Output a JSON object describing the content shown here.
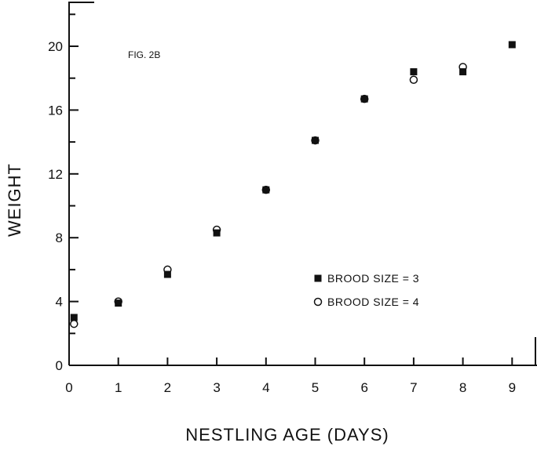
{
  "chart_data": {
    "type": "scatter",
    "annotation": "FIG. 2B",
    "xlabel": "NESTLING AGE (DAYS)",
    "ylabel": "WEIGHT",
    "xlim": [
      0,
      9.5
    ],
    "ylim": [
      0,
      22
    ],
    "x_ticks": [
      "0",
      "1",
      "2",
      "3",
      "4",
      "5",
      "6",
      "7",
      "8",
      "9"
    ],
    "y_ticks": [
      "0",
      "4",
      "8",
      "12",
      "16",
      "20"
    ],
    "grid": false,
    "legend_position": "middle-right",
    "series": [
      {
        "name": "BROOD SIZE = 3",
        "marker": "filled-square",
        "points": [
          {
            "x": 0.1,
            "y": 3.0
          },
          {
            "x": 1,
            "y": 3.9
          },
          {
            "x": 2,
            "y": 5.7
          },
          {
            "x": 3,
            "y": 8.3
          },
          {
            "x": 4,
            "y": 11.0
          },
          {
            "x": 5,
            "y": 14.1
          },
          {
            "x": 6,
            "y": 16.7
          },
          {
            "x": 7,
            "y": 18.4
          },
          {
            "x": 8,
            "y": 18.4
          },
          {
            "x": 9,
            "y": 20.1
          }
        ]
      },
      {
        "name": "BROOD SIZE = 4",
        "marker": "open-circle",
        "points": [
          {
            "x": 0.1,
            "y": 2.6
          },
          {
            "x": 1,
            "y": 4.0
          },
          {
            "x": 2,
            "y": 6.0
          },
          {
            "x": 3,
            "y": 8.5
          },
          {
            "x": 4,
            "y": 11.0
          },
          {
            "x": 5,
            "y": 14.1
          },
          {
            "x": 6,
            "y": 16.7
          },
          {
            "x": 7,
            "y": 17.9
          },
          {
            "x": 8,
            "y": 18.7
          }
        ]
      }
    ]
  }
}
